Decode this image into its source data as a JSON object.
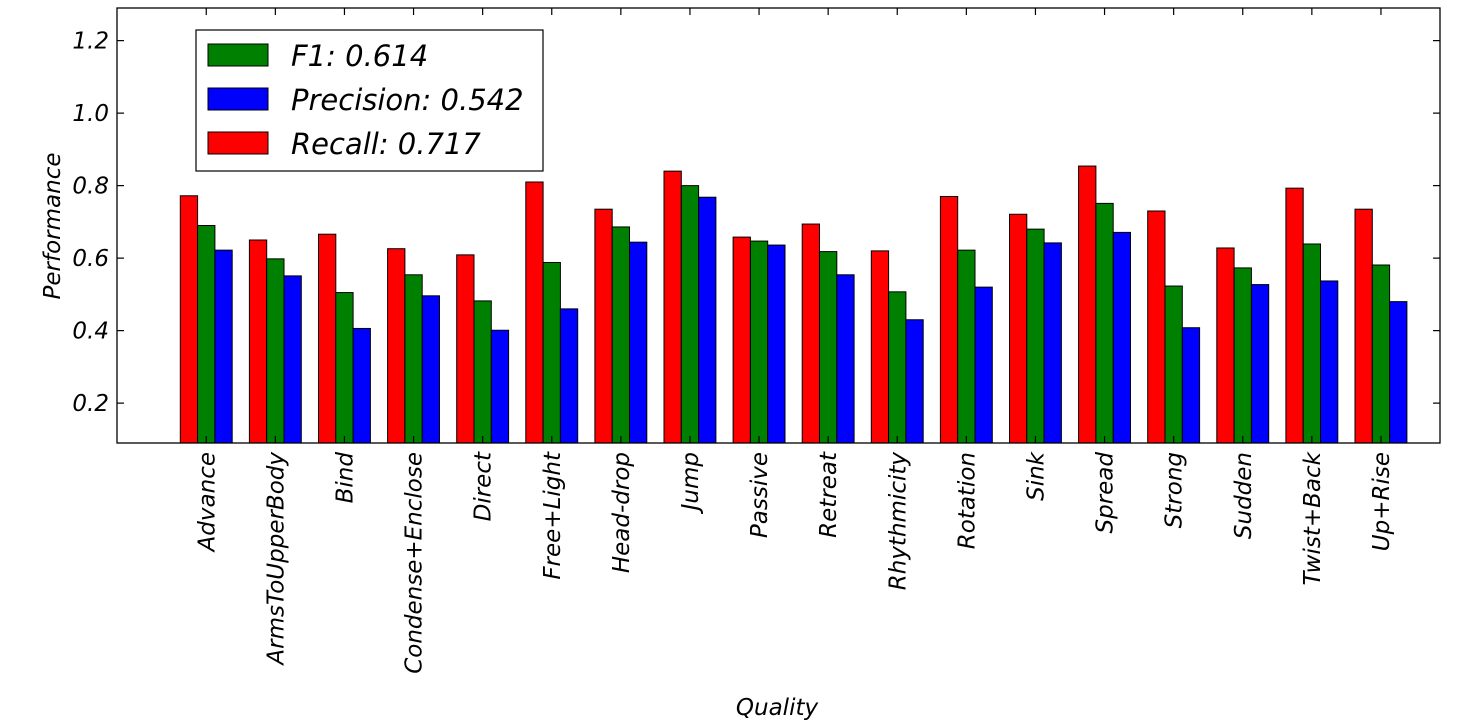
{
  "chart_data": {
    "type": "bar",
    "xlabel": "Quality",
    "ylabel": "Performance",
    "ylim": [
      0.09,
      1.29
    ],
    "yticks": [
      0.2,
      0.4,
      0.6,
      0.8,
      1.0,
      1.2
    ],
    "ytick_labels": [
      "0.2",
      "0.4",
      "0.6",
      "0.8",
      "1.0",
      "1.2"
    ],
    "grid": false,
    "legend_position": "top-left",
    "categories": [
      "Advance",
      "ArmsToUpperBody",
      "Bind",
      "Condense+Enclose",
      "Direct",
      "Free+Light",
      "Head-drop",
      "Jump",
      "Passive",
      "Retreat",
      "Rhythmicity",
      "Rotation",
      "Sink",
      "Spread",
      "Strong",
      "Sudden",
      "Twist+Back",
      "Up+Rise"
    ],
    "series": [
      {
        "key": "recall",
        "legend": "Recall: 0.717",
        "color": "#ff0000",
        "values": [
          0.772,
          0.65,
          0.666,
          0.626,
          0.609,
          0.81,
          0.735,
          0.84,
          0.658,
          0.694,
          0.62,
          0.77,
          0.721,
          0.854,
          0.73,
          0.628,
          0.793,
          0.735
        ]
      },
      {
        "key": "f1",
        "legend": "F1: 0.614",
        "color": "#008000",
        "values": [
          0.69,
          0.598,
          0.505,
          0.554,
          0.482,
          0.588,
          0.686,
          0.8,
          0.647,
          0.618,
          0.507,
          0.622,
          0.68,
          0.751,
          0.523,
          0.573,
          0.639,
          0.581
        ]
      },
      {
        "key": "precision",
        "legend": "Precision: 0.542",
        "color": "#0000ff",
        "values": [
          0.622,
          0.551,
          0.406,
          0.496,
          0.401,
          0.46,
          0.644,
          0.768,
          0.636,
          0.554,
          0.43,
          0.52,
          0.642,
          0.671,
          0.408,
          0.527,
          0.537,
          0.48
        ]
      }
    ],
    "legend_order": [
      "f1",
      "precision",
      "recall"
    ]
  }
}
